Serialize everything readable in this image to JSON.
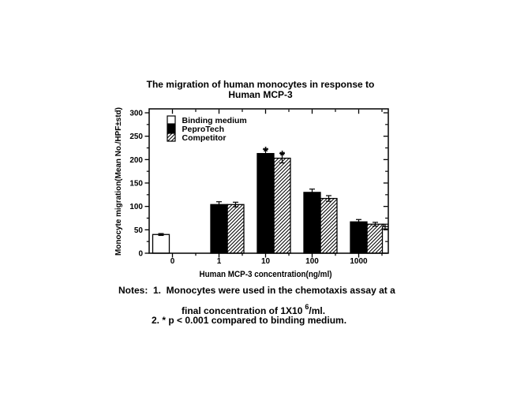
{
  "title": {
    "line1": "The migration of human monocytes in response to",
    "line2": "Human MCP-3"
  },
  "chart_data": {
    "type": "bar",
    "title": "The migration of human monocytes in response to Human MCP-3",
    "categories": [
      "0",
      "1",
      "10",
      "100",
      "1000"
    ],
    "series": [
      {
        "name": "Binding medium",
        "style": "open",
        "values": [
          40,
          null,
          null,
          null,
          null
        ],
        "errors": [
          2,
          null,
          null,
          null,
          null
        ]
      },
      {
        "name": "PeproTech",
        "style": "solid",
        "values": [
          null,
          104,
          213,
          130,
          67
        ],
        "errors": [
          null,
          6,
          9,
          7,
          5
        ]
      },
      {
        "name": "Competitor",
        "style": "hatched",
        "values": [
          null,
          104,
          203,
          117,
          62
        ],
        "errors": [
          null,
          5,
          10,
          6,
          4
        ]
      }
    ],
    "clipped_extra_bar": {
      "series": "Binding medium",
      "value": 57,
      "error": 5
    },
    "significance": [
      {
        "category": "10",
        "series": [
          "PeproTech",
          "Competitor"
        ],
        "marker": "*"
      }
    ],
    "xlabel": "Human MCP-3 concentration(ng/ml)",
    "ylabel": "Monocyte migration(Mean No./HPF±std)",
    "ylim": [
      0,
      300
    ],
    "ytick_step": 50,
    "yminor_step": 25,
    "grid": false,
    "legend_position": "top-left-inside",
    "colors": {
      "foreground": "#000000",
      "background": "#ffffff"
    }
  },
  "notes": {
    "line1": "Notes:  1.  Monocytes were used in the chemotaxis assay at a",
    "line2_prefix": "final concentration of 1X10",
    "line2_sup": "6",
    "line2_suffix": "/ml.",
    "line3": "2. * p < 0.001 compared to binding medium."
  }
}
